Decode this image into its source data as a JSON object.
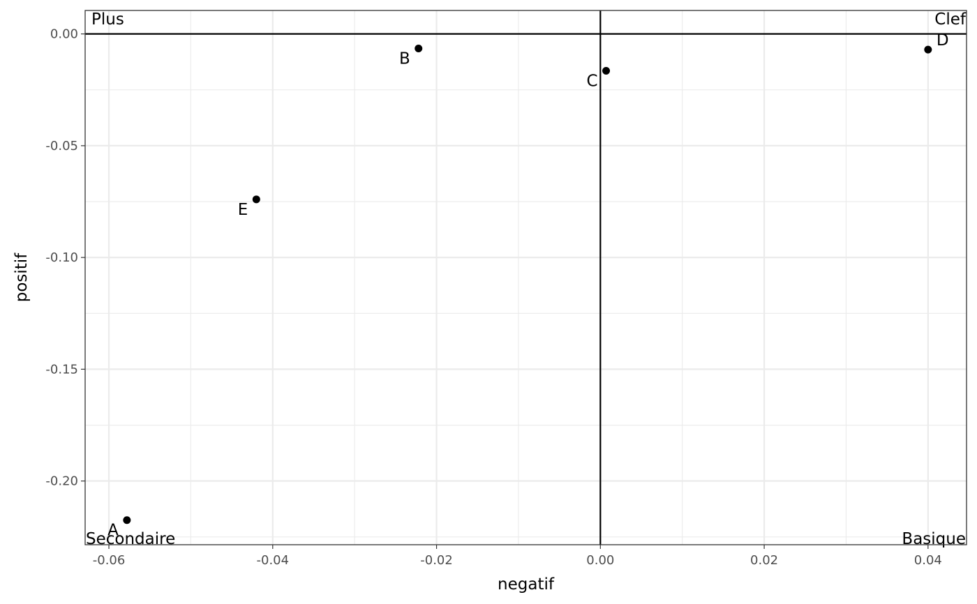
{
  "chart_data": {
    "type": "scatter",
    "title": "",
    "xlabel": "negatif",
    "ylabel": "positif",
    "xlim": [
      -0.0629,
      0.0447
    ],
    "ylim": [
      -0.2285,
      0.0105
    ],
    "x_ticks": [
      -0.06,
      -0.04,
      -0.02,
      0.0,
      0.02,
      0.04
    ],
    "x_tick_labels": [
      "-0.06",
      "-0.04",
      "-0.02",
      "0.00",
      "0.02",
      "0.04"
    ],
    "y_ticks": [
      0.0,
      -0.05,
      -0.1,
      -0.15,
      -0.2
    ],
    "y_tick_labels": [
      "0.00",
      "-0.05",
      "-0.10",
      "-0.15",
      "-0.20"
    ],
    "grid": true,
    "reference_lines": {
      "x": 0.0,
      "y": 0.0
    },
    "points": [
      {
        "label": "A",
        "x": -0.0578,
        "y": -0.2175
      },
      {
        "label": "B",
        "x": -0.0222,
        "y": -0.0065
      },
      {
        "label": "C",
        "x": 0.0007,
        "y": -0.0165
      },
      {
        "label": "D",
        "x": 0.04,
        "y": -0.007
      },
      {
        "label": "E",
        "x": -0.042,
        "y": -0.074
      }
    ],
    "quadrant_labels": {
      "top_left": "Plus",
      "top_right": "Clef",
      "bottom_left": "Secondaire",
      "bottom_right": "Basique"
    },
    "colors": {
      "points": "#000000",
      "grid": "#ebebeb",
      "panel_border": "#333333",
      "reference_lines": "#000000"
    }
  }
}
